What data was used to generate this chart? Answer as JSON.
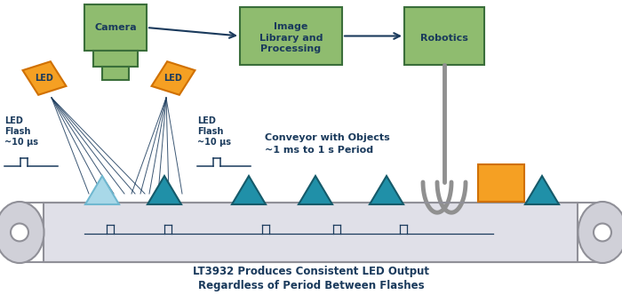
{
  "bg_color": "#ffffff",
  "dark_blue": "#1a3a5c",
  "green_fill": "#8fbc6f",
  "green_border": "#3a6e3a",
  "orange_fill": "#f5a023",
  "orange_border": "#d07000",
  "teal_fill": "#2090a8",
  "light_blue_fill": "#a8d8e8",
  "light_blue_border": "#70b8d0",
  "gray_fill": "#c8c8d0",
  "gray_border": "#808090",
  "conveyor_fill": "#e0e0e8",
  "conveyor_border": "#909098",
  "bottom_text1": "LT3932 Produces Consistent LED Output",
  "bottom_text2": "Regardless of Period Between Flashes",
  "conveyor_text": "Conveyor with Objects\n~1 ms to 1 s Period",
  "flash_text1": "LED\nFlash\n~10 μs",
  "flash_text2": "LED\nFlash\n~10 μs",
  "camera_text": "Camera",
  "image_proc_text": "Image\nLibrary and\nProcessing",
  "robotics_text": "Robotics"
}
